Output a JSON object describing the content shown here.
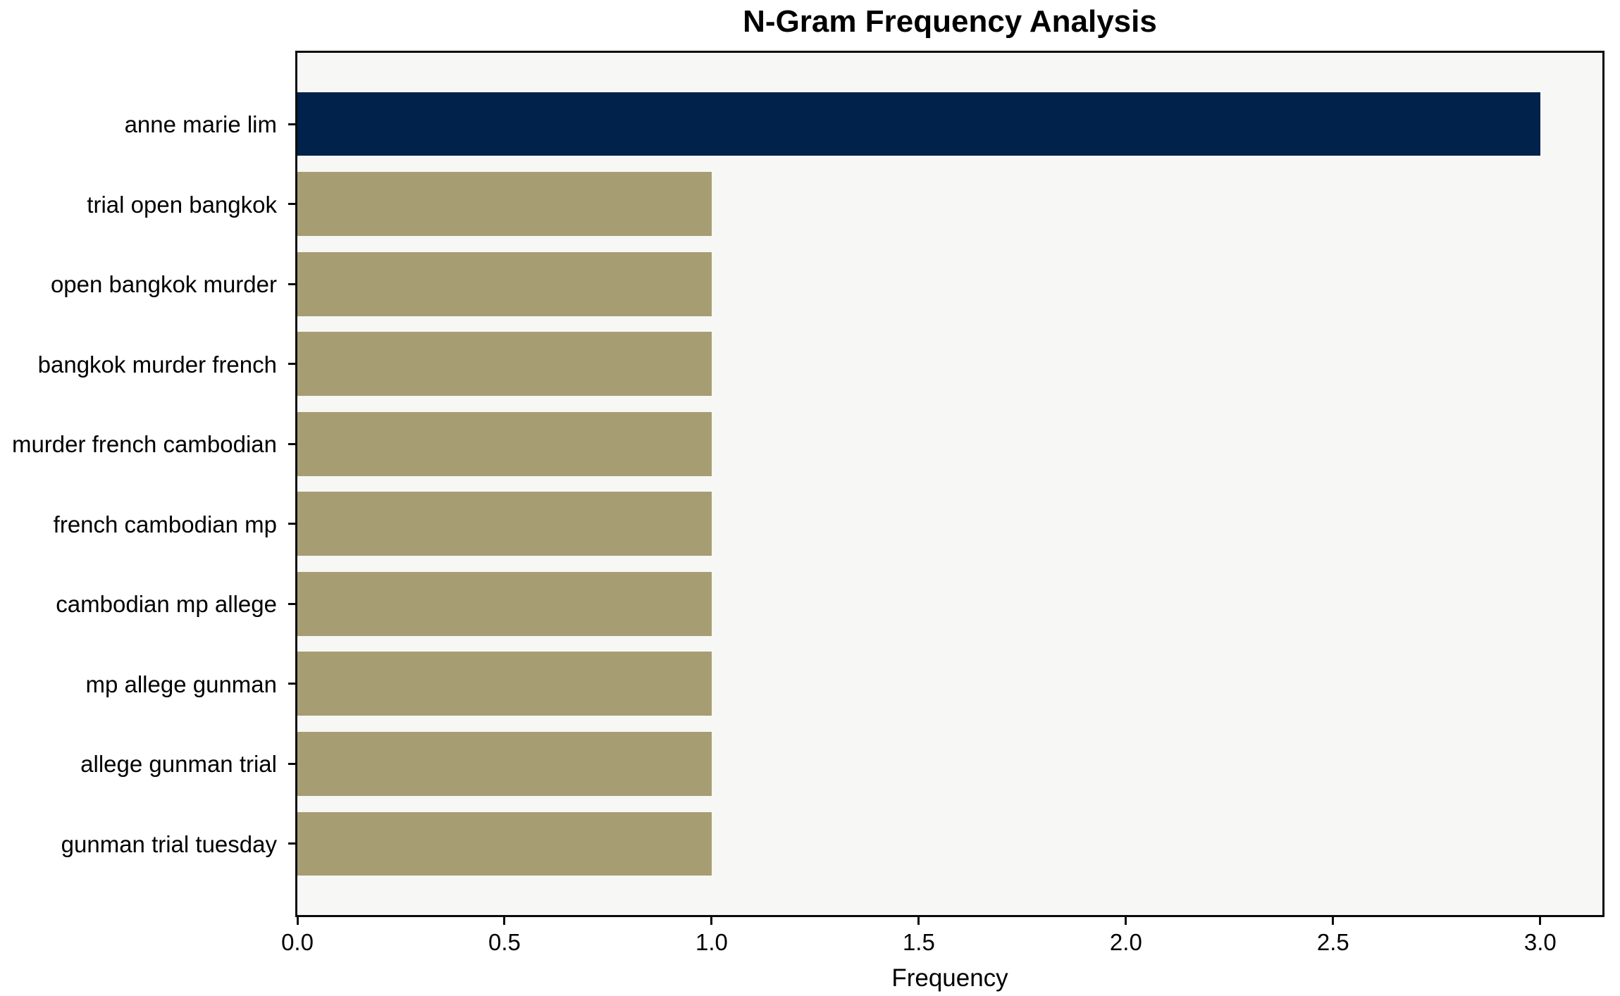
{
  "chart_data": {
    "type": "bar",
    "orientation": "horizontal",
    "title": "N-Gram Frequency Analysis",
    "xlabel": "Frequency",
    "ylabel": "",
    "categories": [
      "anne marie lim",
      "trial open bangkok",
      "open bangkok murder",
      "bangkok murder french",
      "murder french cambodian",
      "french cambodian mp",
      "cambodian mp allege",
      "mp allege gunman",
      "allege gunman trial",
      "gunman trial tuesday"
    ],
    "values": [
      3,
      1,
      1,
      1,
      1,
      1,
      1,
      1,
      1,
      1
    ],
    "bar_colors": [
      "#01224A",
      "#A69E72",
      "#A69E72",
      "#A69E72",
      "#A69E72",
      "#A69E72",
      "#A69E72",
      "#A69E72",
      "#A69E72",
      "#A69E72"
    ],
    "xticks": [
      {
        "value": 0.0,
        "label": "0.0"
      },
      {
        "value": 0.5,
        "label": "0.5"
      },
      {
        "value": 1.0,
        "label": "1.0"
      },
      {
        "value": 1.5,
        "label": "1.5"
      },
      {
        "value": 2.0,
        "label": "2.0"
      },
      {
        "value": 2.5,
        "label": "2.5"
      },
      {
        "value": 3.0,
        "label": "3.0"
      }
    ],
    "xlim": [
      0,
      3.15
    ],
    "grid": false,
    "legend": "none",
    "plot_background": "#F7F7F6",
    "figure_background": "#FFFFFF",
    "layout_hints": {
      "bar_height_fraction": 0.8,
      "y_margin_units": 0.89
    }
  }
}
